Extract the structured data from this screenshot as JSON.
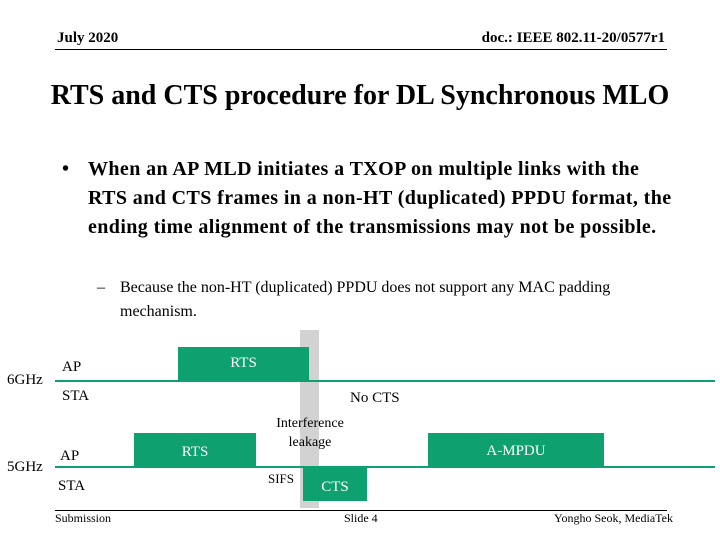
{
  "header": {
    "date": "July 2020",
    "doc": "doc.: IEEE 802.11-20/0577r1"
  },
  "title": "RTS and CTS procedure for DL Synchronous MLO",
  "bullet": {
    "marker": "•",
    "text": "When an AP MLD initiates a TXOP on multiple links with the RTS and CTS frames in a non-HT (duplicated) PPDU format, the ending time alignment of the transmissions may not be possible."
  },
  "subbullet": {
    "marker": "–",
    "text": "Because the non-HT (duplicated) PPDU does not support any MAC padding mechanism."
  },
  "diagram": {
    "link_6ghz": {
      "band": "6GHz",
      "ap_label": "AP",
      "sta_label": "STA",
      "rts_label": "RTS",
      "no_cts_label": "No CTS"
    },
    "link_5ghz": {
      "band": "5GHz",
      "ap_label": "AP",
      "sta_label": "STA",
      "rts_label": "RTS",
      "cts_label": "CTS",
      "ampdu_label": "A-MPDU",
      "sifs_label": "SIFS"
    },
    "interference_label": "Interference leakage",
    "colors": {
      "frame_fill": "#0fa070",
      "interference_band": "#d2d2d2"
    }
  },
  "footer": {
    "left": "Submission",
    "center": "Slide 4",
    "right": "Yongho Seok, MediaTek"
  }
}
